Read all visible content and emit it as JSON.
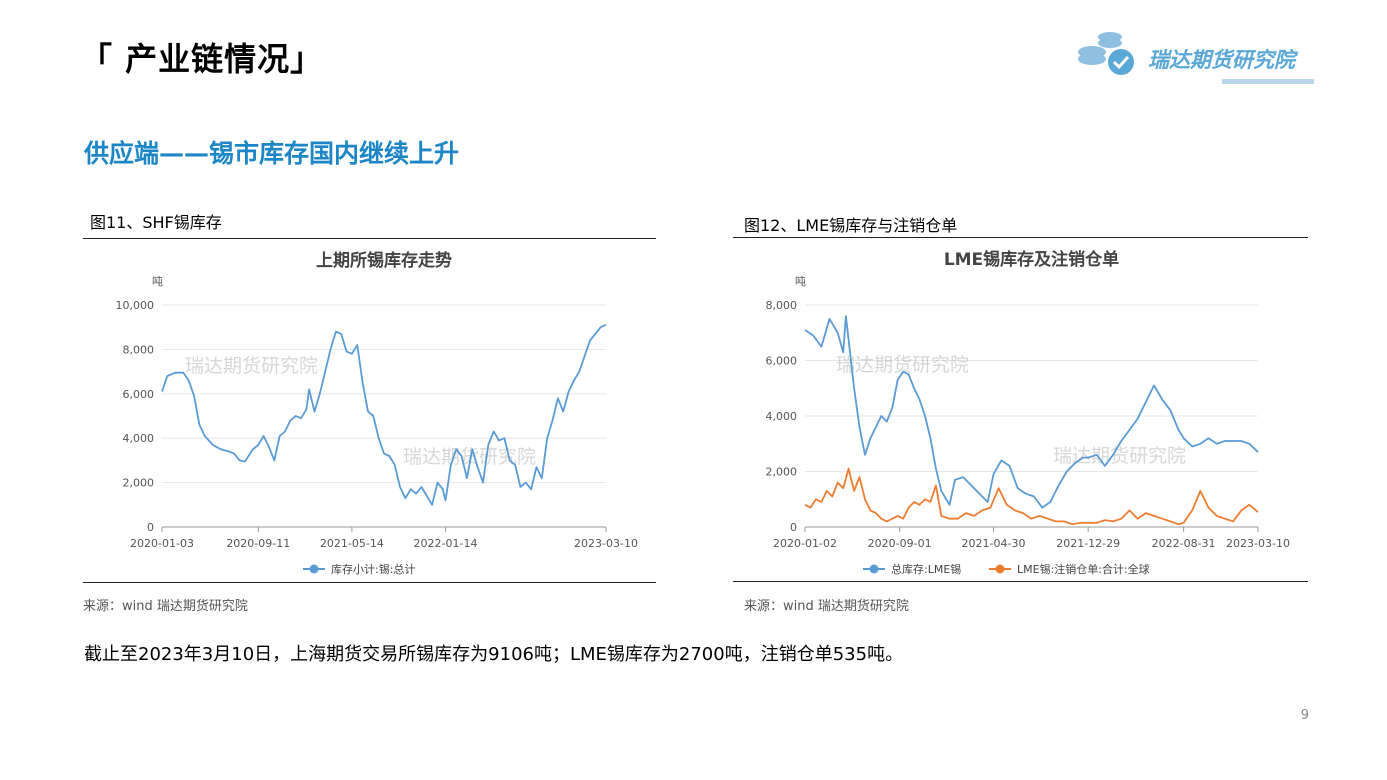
{
  "header": {
    "title": "「 产业链情况」",
    "subtitle": "供应端——锡市库存国内继续上升",
    "logo_text": "瑞达期货研究院"
  },
  "figures": [
    {
      "caption": "图11、SHF锡库存",
      "source": "来源：wind   瑞达期货研究院"
    },
    {
      "caption": "图12、LME锡库存与注销仓单",
      "source": "来源：wind   瑞达期货研究院"
    }
  ],
  "summary": "截止至2023年3月10日，上海期货交易所锡库存为9106吨；LME锡库存为2700吨，注销仓单535吨。",
  "page_number": "9",
  "watermark": "瑞达期货研究院",
  "colors": {
    "accent": "#1d86c7",
    "series_blue": "#5b9bd5",
    "series_orange": "#ed7d31"
  },
  "chart_data": [
    {
      "type": "line",
      "title": "上期所锡库存走势",
      "ylabel": "吨",
      "ylim": [
        0,
        10000
      ],
      "yticks": [
        "0",
        "2,000",
        "4,000",
        "6,000",
        "8,000",
        "10,000"
      ],
      "xticks": [
        "2020-01-03",
        "2020-09-11",
        "2021-05-14",
        "2022-01-14",
        "2023-03-10"
      ],
      "xlim": [
        "2020-01-03",
        "2023-03-10"
      ],
      "legend_position": "bottom",
      "grid": true,
      "series": [
        {
          "name": "库存小计:锡:总计",
          "color": "#5b9bd5",
          "points": [
            [
              "2020-01-03",
              6100
            ],
            [
              "2020-01-17",
              6800
            ],
            [
              "2020-02-07",
              6950
            ],
            [
              "2020-02-28",
              6950
            ],
            [
              "2020-03-13",
              6600
            ],
            [
              "2020-03-27",
              5900
            ],
            [
              "2020-04-10",
              4600
            ],
            [
              "2020-04-24",
              4100
            ],
            [
              "2020-05-15",
              3700
            ],
            [
              "2020-06-05",
              3500
            ],
            [
              "2020-06-26",
              3400
            ],
            [
              "2020-07-10",
              3300
            ],
            [
              "2020-07-24",
              3000
            ],
            [
              "2020-08-07",
              2950
            ],
            [
              "2020-08-28",
              3500
            ],
            [
              "2020-09-11",
              3700
            ],
            [
              "2020-09-25",
              4100
            ],
            [
              "2020-10-09",
              3600
            ],
            [
              "2020-10-23",
              3000
            ],
            [
              "2020-11-06",
              4100
            ],
            [
              "2020-11-20",
              4300
            ],
            [
              "2020-12-04",
              4800
            ],
            [
              "2020-12-18",
              5000
            ],
            [
              "2021-01-01",
              4900
            ],
            [
              "2021-01-15",
              5300
            ],
            [
              "2021-01-22",
              6200
            ],
            [
              "2021-02-05",
              5200
            ],
            [
              "2021-02-19",
              6000
            ],
            [
              "2021-03-05",
              7000
            ],
            [
              "2021-03-19",
              8000
            ],
            [
              "2021-04-02",
              8800
            ],
            [
              "2021-04-16",
              8700
            ],
            [
              "2021-04-30",
              7900
            ],
            [
              "2021-05-14",
              7800
            ],
            [
              "2021-05-28",
              8200
            ],
            [
              "2021-06-11",
              6500
            ],
            [
              "2021-06-25",
              5200
            ],
            [
              "2021-07-09",
              5000
            ],
            [
              "2021-07-23",
              4000
            ],
            [
              "2021-08-06",
              3300
            ],
            [
              "2021-08-20",
              3200
            ],
            [
              "2021-09-03",
              2800
            ],
            [
              "2021-09-17",
              1800
            ],
            [
              "2021-10-01",
              1300
            ],
            [
              "2021-10-15",
              1700
            ],
            [
              "2021-10-29",
              1500
            ],
            [
              "2021-11-12",
              1800
            ],
            [
              "2021-11-26",
              1400
            ],
            [
              "2021-12-10",
              1000
            ],
            [
              "2021-12-24",
              2000
            ],
            [
              "2022-01-07",
              1700
            ],
            [
              "2022-01-14",
              1200
            ],
            [
              "2022-01-28",
              2800
            ],
            [
              "2022-02-11",
              3500
            ],
            [
              "2022-02-25",
              3200
            ],
            [
              "2022-03-11",
              2200
            ],
            [
              "2022-03-25",
              3500
            ],
            [
              "2022-04-08",
              2700
            ],
            [
              "2022-04-22",
              2000
            ],
            [
              "2022-05-06",
              3700
            ],
            [
              "2022-05-20",
              4300
            ],
            [
              "2022-06-03",
              3900
            ],
            [
              "2022-06-17",
              4000
            ],
            [
              "2022-07-01",
              3000
            ],
            [
              "2022-07-15",
              2800
            ],
            [
              "2022-07-29",
              1800
            ],
            [
              "2022-08-12",
              2000
            ],
            [
              "2022-08-26",
              1700
            ],
            [
              "2022-09-09",
              2700
            ],
            [
              "2022-09-23",
              2200
            ],
            [
              "2022-10-07",
              4000
            ],
            [
              "2022-10-21",
              4800
            ],
            [
              "2022-11-04",
              5800
            ],
            [
              "2022-11-18",
              5200
            ],
            [
              "2022-12-02",
              6100
            ],
            [
              "2022-12-16",
              6600
            ],
            [
              "2022-12-30",
              7000
            ],
            [
              "2023-01-13",
              7700
            ],
            [
              "2023-01-27",
              8400
            ],
            [
              "2023-02-10",
              8700
            ],
            [
              "2023-02-24",
              9000
            ],
            [
              "2023-03-10",
              9106
            ]
          ]
        }
      ]
    },
    {
      "type": "line",
      "title": "LME锡库存及注销仓单",
      "ylabel": "吨",
      "ylim": [
        0,
        8000
      ],
      "yticks": [
        "0",
        "2,000",
        "4,000",
        "6,000",
        "8,000"
      ],
      "xticks": [
        "2020-01-02",
        "2020-09-01",
        "2021-04-30",
        "2021-12-29",
        "2022-08-31",
        "2023-03-10"
      ],
      "xlim": [
        "2020-01-02",
        "2023-03-10"
      ],
      "legend_position": "bottom",
      "grid": true,
      "series": [
        {
          "name": "总库存:LME锡",
          "color": "#5b9bd5",
          "points": [
            [
              "2020-01-02",
              7100
            ],
            [
              "2020-01-23",
              6900
            ],
            [
              "2020-02-13",
              6500
            ],
            [
              "2020-03-05",
              7500
            ],
            [
              "2020-03-26",
              7000
            ],
            [
              "2020-04-09",
              6300
            ],
            [
              "2020-04-16",
              7600
            ],
            [
              "2020-05-07",
              5000
            ],
            [
              "2020-05-21",
              3600
            ],
            [
              "2020-06-04",
              2600
            ],
            [
              "2020-06-18",
              3200
            ],
            [
              "2020-07-02",
              3600
            ],
            [
              "2020-07-16",
              4000
            ],
            [
              "2020-07-30",
              3800
            ],
            [
              "2020-08-13",
              4300
            ],
            [
              "2020-08-27",
              5300
            ],
            [
              "2020-09-10",
              5600
            ],
            [
              "2020-09-24",
              5500
            ],
            [
              "2020-10-08",
              5000
            ],
            [
              "2020-10-22",
              4600
            ],
            [
              "2020-11-05",
              4000
            ],
            [
              "2020-11-19",
              3200
            ],
            [
              "2020-12-03",
              2100
            ],
            [
              "2020-12-17",
              1300
            ],
            [
              "2021-01-07",
              800
            ],
            [
              "2021-01-21",
              1700
            ],
            [
              "2021-02-11",
              1800
            ],
            [
              "2021-03-04",
              1500
            ],
            [
              "2021-03-25",
              1200
            ],
            [
              "2021-04-15",
              900
            ],
            [
              "2021-04-30",
              1900
            ],
            [
              "2021-05-20",
              2400
            ],
            [
              "2021-06-10",
              2200
            ],
            [
              "2021-07-01",
              1400
            ],
            [
              "2021-07-22",
              1200
            ],
            [
              "2021-08-12",
              1100
            ],
            [
              "2021-09-02",
              700
            ],
            [
              "2021-09-23",
              900
            ],
            [
              "2021-10-14",
              1500
            ],
            [
              "2021-11-04",
              2000
            ],
            [
              "2021-11-25",
              2300
            ],
            [
              "2021-12-16",
              2500
            ],
            [
              "2021-12-29",
              2500
            ],
            [
              "2022-01-20",
              2600
            ],
            [
              "2022-02-10",
              2200
            ],
            [
              "2022-03-03",
              2600
            ],
            [
              "2022-03-24",
              3100
            ],
            [
              "2022-04-14",
              3500
            ],
            [
              "2022-05-05",
              3900
            ],
            [
              "2022-05-26",
              4500
            ],
            [
              "2022-06-16",
              5100
            ],
            [
              "2022-07-07",
              4600
            ],
            [
              "2022-07-28",
              4200
            ],
            [
              "2022-08-18",
              3500
            ],
            [
              "2022-08-31",
              3200
            ],
            [
              "2022-09-22",
              2900
            ],
            [
              "2022-10-13",
              3000
            ],
            [
              "2022-11-03",
              3200
            ],
            [
              "2022-11-24",
              3000
            ],
            [
              "2022-12-15",
              3100
            ],
            [
              "2023-01-05",
              3100
            ],
            [
              "2023-01-26",
              3100
            ],
            [
              "2023-02-16",
              3000
            ],
            [
              "2023-03-10",
              2700
            ]
          ]
        },
        {
          "name": "LME锡:注销仓单:合计:全球",
          "color": "#ed7d31",
          "points": [
            [
              "2020-01-02",
              800
            ],
            [
              "2020-01-16",
              700
            ],
            [
              "2020-01-30",
              1000
            ],
            [
              "2020-02-13",
              900
            ],
            [
              "2020-02-27",
              1300
            ],
            [
              "2020-03-12",
              1100
            ],
            [
              "2020-03-26",
              1600
            ],
            [
              "2020-04-09",
              1400
            ],
            [
              "2020-04-23",
              2100
            ],
            [
              "2020-05-07",
              1300
            ],
            [
              "2020-05-21",
              1800
            ],
            [
              "2020-06-04",
              1000
            ],
            [
              "2020-06-18",
              600
            ],
            [
              "2020-07-02",
              500
            ],
            [
              "2020-07-16",
              300
            ],
            [
              "2020-07-30",
              200
            ],
            [
              "2020-08-13",
              300
            ],
            [
              "2020-08-27",
              400
            ],
            [
              "2020-09-10",
              300
            ],
            [
              "2020-09-24",
              700
            ],
            [
              "2020-10-08",
              900
            ],
            [
              "2020-10-22",
              800
            ],
            [
              "2020-11-05",
              1000
            ],
            [
              "2020-11-19",
              900
            ],
            [
              "2020-12-03",
              1500
            ],
            [
              "2020-12-17",
              400
            ],
            [
              "2021-01-07",
              300
            ],
            [
              "2021-01-28",
              300
            ],
            [
              "2021-02-18",
              500
            ],
            [
              "2021-03-11",
              400
            ],
            [
              "2021-04-01",
              600
            ],
            [
              "2021-04-22",
              700
            ],
            [
              "2021-05-13",
              1400
            ],
            [
              "2021-06-03",
              800
            ],
            [
              "2021-06-24",
              600
            ],
            [
              "2021-07-15",
              500
            ],
            [
              "2021-08-05",
              300
            ],
            [
              "2021-08-26",
              400
            ],
            [
              "2021-09-16",
              300
            ],
            [
              "2021-10-07",
              200
            ],
            [
              "2021-10-28",
              200
            ],
            [
              "2021-11-18",
              100
            ],
            [
              "2021-12-09",
              150
            ],
            [
              "2021-12-29",
              150
            ],
            [
              "2022-01-20",
              150
            ],
            [
              "2022-02-10",
              250
            ],
            [
              "2022-03-03",
              200
            ],
            [
              "2022-03-24",
              300
            ],
            [
              "2022-04-14",
              600
            ],
            [
              "2022-05-05",
              300
            ],
            [
              "2022-05-26",
              500
            ],
            [
              "2022-06-16",
              400
            ],
            [
              "2022-07-07",
              300
            ],
            [
              "2022-07-28",
              200
            ],
            [
              "2022-08-18",
              100
            ],
            [
              "2022-08-31",
              150
            ],
            [
              "2022-09-22",
              600
            ],
            [
              "2022-10-13",
              1300
            ],
            [
              "2022-11-03",
              700
            ],
            [
              "2022-11-24",
              400
            ],
            [
              "2022-12-15",
              300
            ],
            [
              "2023-01-05",
              200
            ],
            [
              "2023-01-26",
              600
            ],
            [
              "2023-02-16",
              800
            ],
            [
              "2023-03-10",
              535
            ]
          ]
        }
      ]
    }
  ]
}
